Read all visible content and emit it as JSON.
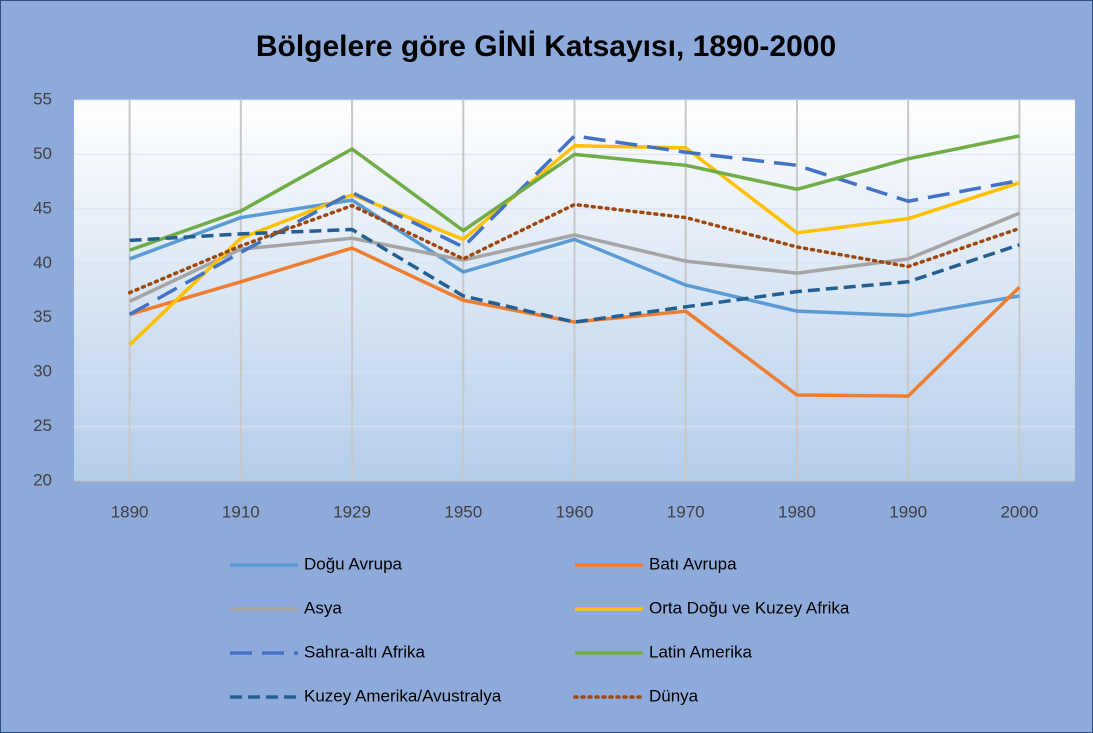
{
  "chart_data": {
    "type": "line",
    "title": "Bölgelere göre GİNİ Katsayısı, 1890-2000",
    "categories": [
      "1890",
      "1910",
      "1929",
      "1950",
      "1960",
      "1970",
      "1980",
      "1990",
      "2000"
    ],
    "series": [
      {
        "name": "Doğu Avrupa",
        "color": "#5b9bd5",
        "dash": "solid",
        "values": [
          40.4,
          44.2,
          45.8,
          39.2,
          42.2,
          38.0,
          35.6,
          35.2,
          37.0
        ]
      },
      {
        "name": "Batı Avrupa",
        "color": "#ed7d31",
        "dash": "solid",
        "values": [
          35.3,
          38.3,
          41.4,
          36.6,
          34.6,
          35.6,
          27.9,
          27.8,
          37.8
        ]
      },
      {
        "name": "Asya",
        "color": "#a5a5a5",
        "dash": "solid",
        "values": [
          36.5,
          41.3,
          42.3,
          40.3,
          42.6,
          40.2,
          39.1,
          40.4,
          44.6
        ]
      },
      {
        "name": "Orta Doğu ve Kuzey Afrika",
        "color": "#ffc000",
        "dash": "solid",
        "values": [
          32.5,
          42.3,
          46.3,
          42.2,
          50.8,
          50.6,
          42.8,
          44.1,
          47.4
        ]
      },
      {
        "name": "Sahra-altı Afrika",
        "color": "#4472c4",
        "dash": "long",
        "values": [
          35.3,
          41.0,
          46.5,
          41.5,
          51.7,
          50.2,
          49.0,
          45.7,
          47.6
        ]
      },
      {
        "name": "Latin Amerika",
        "color": "#70ad47",
        "dash": "solid",
        "values": [
          41.2,
          44.8,
          50.5,
          43.0,
          50.0,
          49.0,
          46.8,
          49.6,
          51.7
        ]
      },
      {
        "name": "Kuzey Amerika/Avustralya",
        "color": "#255e91",
        "dash": "short",
        "values": [
          42.1,
          42.7,
          43.1,
          37.0,
          34.6,
          36.0,
          37.4,
          38.3,
          41.7
        ]
      },
      {
        "name": "Dünya",
        "color": "#9e480e",
        "dash": "dot",
        "values": [
          37.3,
          41.6,
          45.3,
          40.4,
          45.4,
          44.2,
          41.5,
          39.7,
          43.2
        ]
      }
    ],
    "ylim": [
      20,
      55
    ],
    "yticks": [
      20,
      25,
      30,
      35,
      40,
      45,
      50,
      55
    ],
    "grid": true
  }
}
